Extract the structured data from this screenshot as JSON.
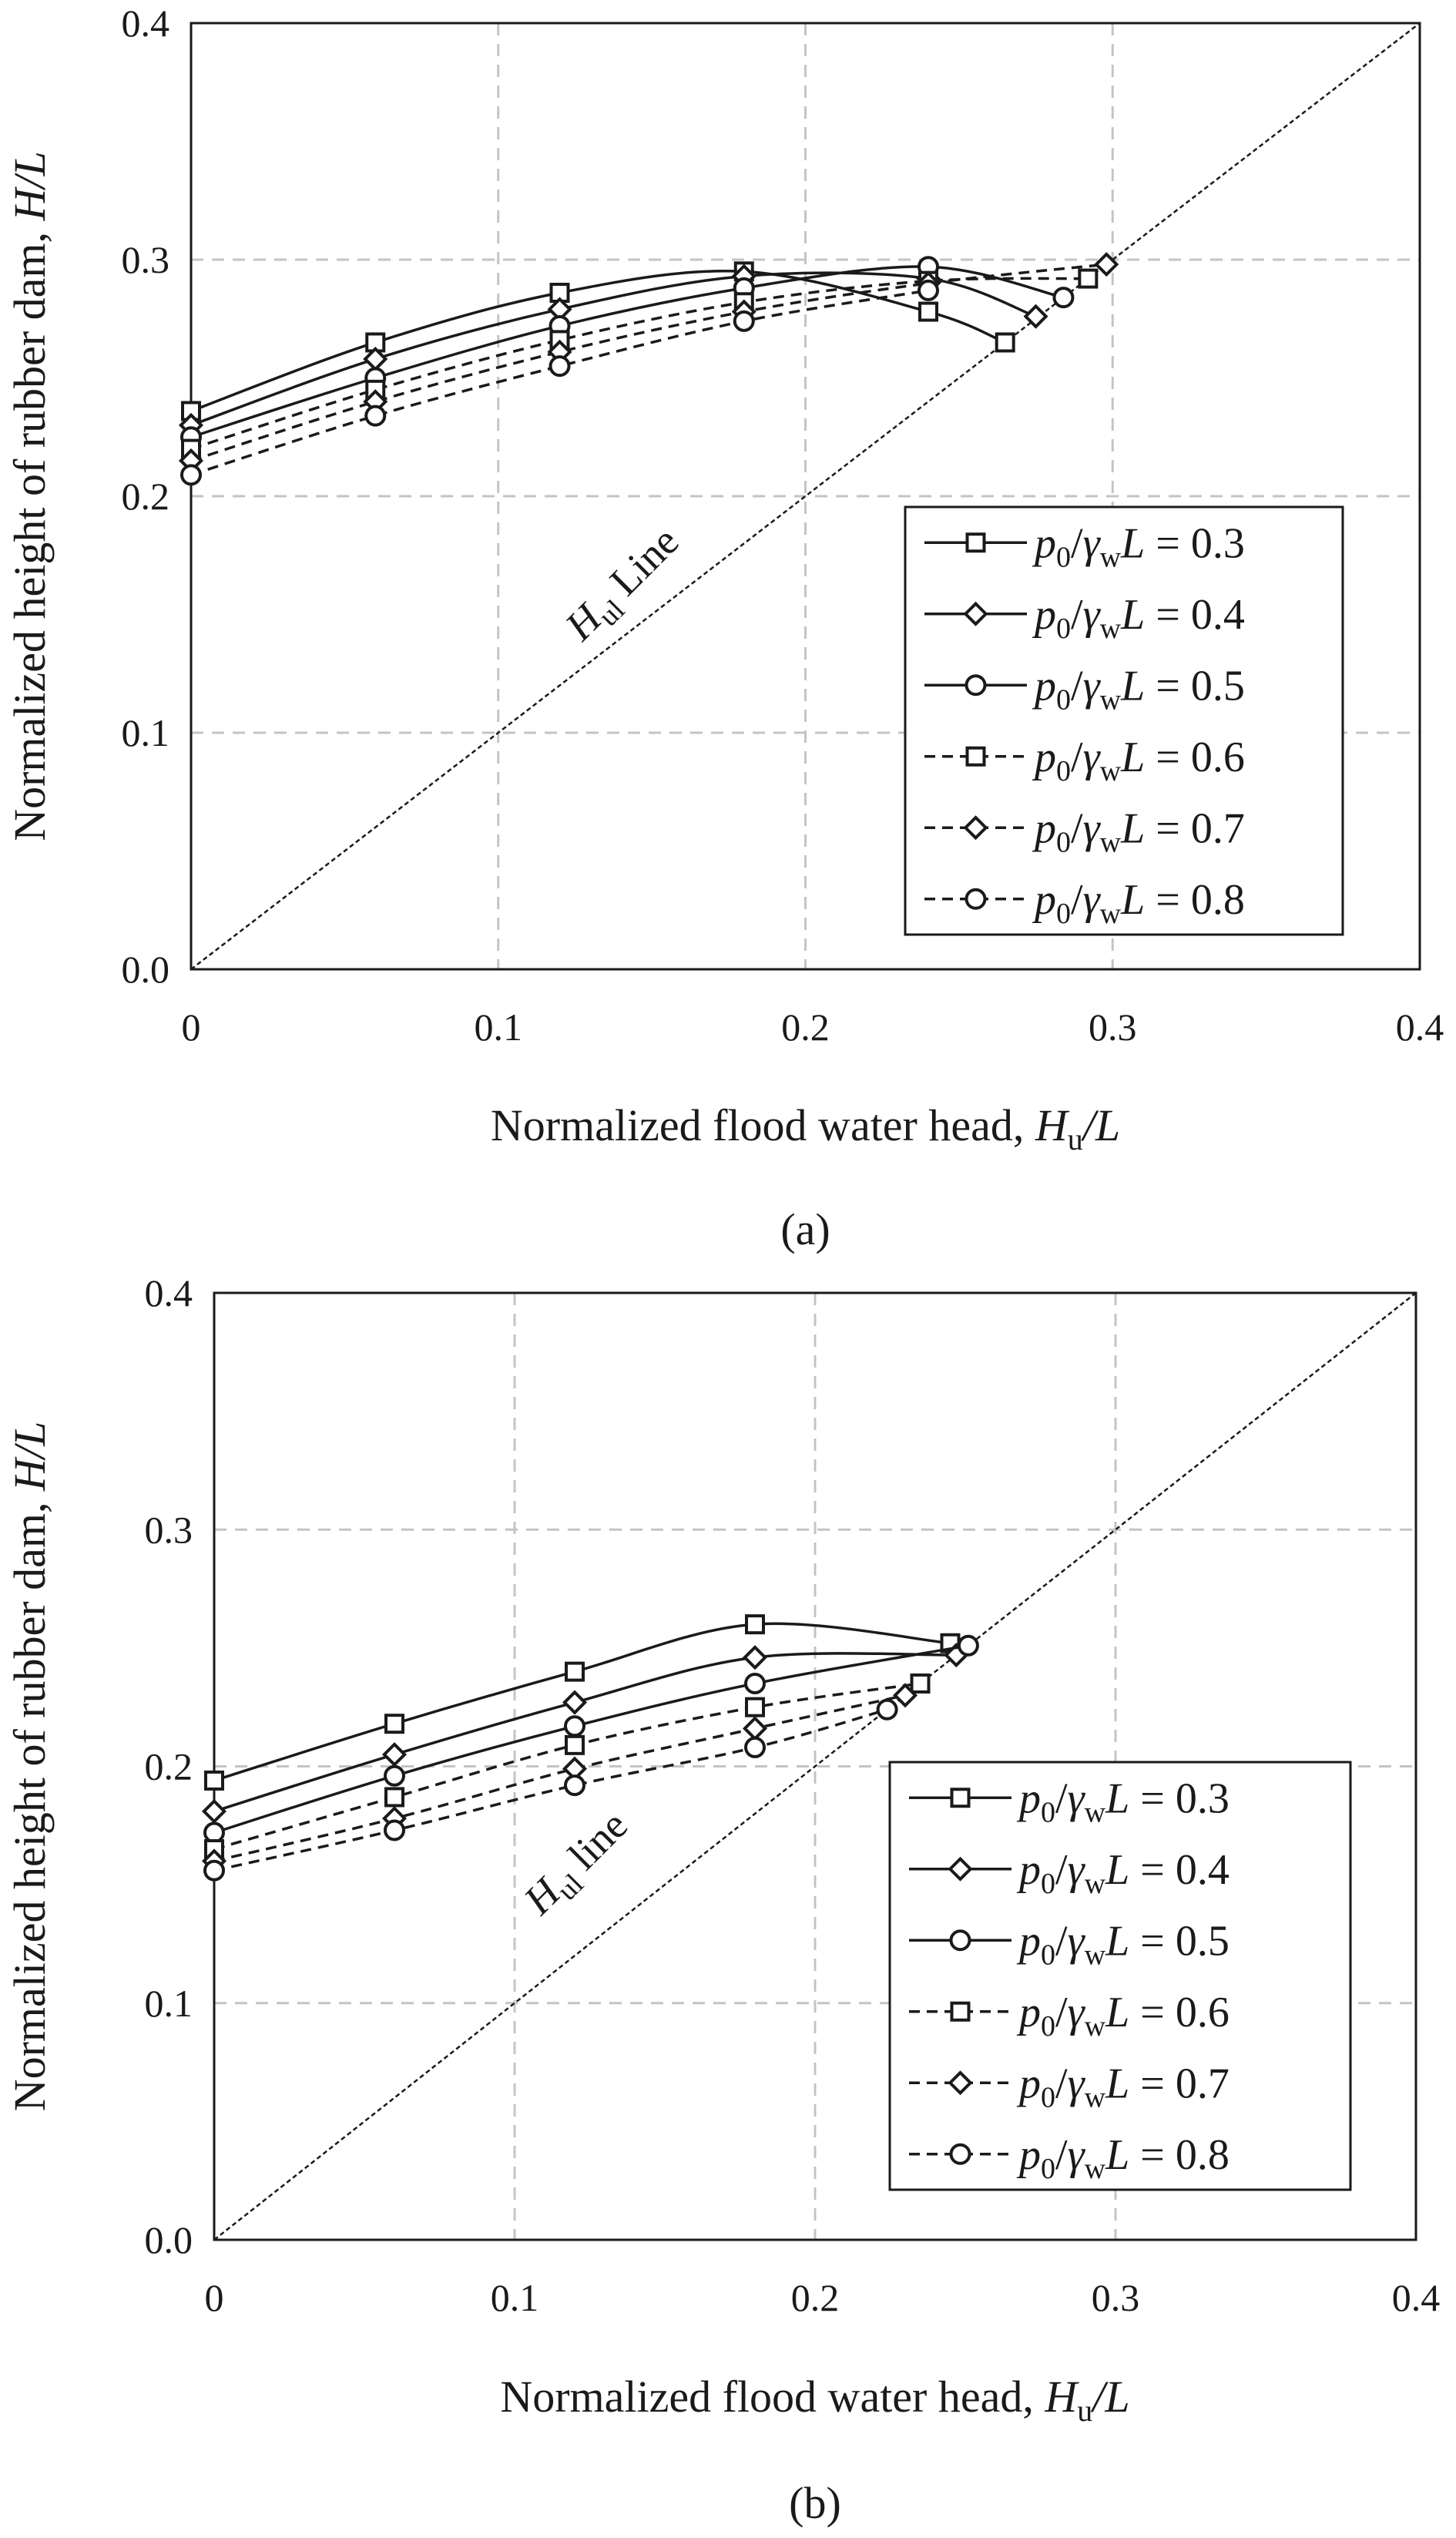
{
  "figure": {
    "panels": [
      {
        "caption": "(a)",
        "annotation": {
          "italic": "H",
          "sub": "ul",
          "rest": " Line"
        },
        "chart_data": {
          "type": "line",
          "xlabel": {
            "text": "Normalized flood water head, ",
            "italic": "H",
            "sub": "u",
            "suffix": "/L"
          },
          "ylabel": {
            "text": "Normalized height of rubber dam, ",
            "italic": "H/L"
          },
          "xlim": [
            0,
            0.4
          ],
          "ylim": [
            0,
            0.4
          ],
          "xticks": [
            "0",
            "0.1",
            "0.2",
            "0.3",
            "0.4"
          ],
          "yticks": [
            "0.0",
            "0.1",
            "0.2",
            "0.3",
            "0.4"
          ],
          "grid": true,
          "legend_position": "bottom-right",
          "reference_line": {
            "name": "Hul Line",
            "x": [
              0,
              0.4
            ],
            "y": [
              0,
              0.4
            ]
          },
          "series": [
            {
              "name": "p0/γwL = 0.3",
              "value": "0.3",
              "marker": "square",
              "dash": "solid",
              "points": [
                [
                  0,
                  0.236
                ],
                [
                  0.06,
                  0.265
                ],
                [
                  0.12,
                  0.286
                ],
                [
                  0.18,
                  0.295
                ],
                [
                  0.24,
                  0.278
                ],
                [
                  0.265,
                  0.265
                ]
              ]
            },
            {
              "name": "p0/γwL = 0.4",
              "value": "0.4",
              "marker": "diamond",
              "dash": "solid",
              "points": [
                [
                  0,
                  0.23
                ],
                [
                  0.06,
                  0.258
                ],
                [
                  0.12,
                  0.279
                ],
                [
                  0.18,
                  0.293
                ],
                [
                  0.24,
                  0.292
                ],
                [
                  0.275,
                  0.276
                ]
              ]
            },
            {
              "name": "p0/γwL = 0.5",
              "value": "0.5",
              "marker": "circle",
              "dash": "solid",
              "points": [
                [
                  0,
                  0.225
                ],
                [
                  0.06,
                  0.25
                ],
                [
                  0.12,
                  0.272
                ],
                [
                  0.18,
                  0.288
                ],
                [
                  0.24,
                  0.297
                ],
                [
                  0.284,
                  0.284
                ]
              ]
            },
            {
              "name": "p0/γwL = 0.6",
              "value": "0.6",
              "marker": "square",
              "dash": "dashed",
              "points": [
                [
                  0,
                  0.22
                ],
                [
                  0.06,
                  0.245
                ],
                [
                  0.12,
                  0.266
                ],
                [
                  0.18,
                  0.282
                ],
                [
                  0.24,
                  0.291
                ],
                [
                  0.292,
                  0.292
                ]
              ]
            },
            {
              "name": "p0/γwL = 0.7",
              "value": "0.7",
              "marker": "diamond",
              "dash": "dashed",
              "points": [
                [
                  0,
                  0.215
                ],
                [
                  0.06,
                  0.24
                ],
                [
                  0.12,
                  0.261
                ],
                [
                  0.18,
                  0.278
                ],
                [
                  0.24,
                  0.29
                ],
                [
                  0.298,
                  0.298
                ]
              ]
            },
            {
              "name": "p0/γwL = 0.8",
              "value": "0.8",
              "marker": "circle",
              "dash": "dashed",
              "points": [
                [
                  0,
                  0.209
                ],
                [
                  0.06,
                  0.234
                ],
                [
                  0.12,
                  0.255
                ],
                [
                  0.18,
                  0.274
                ],
                [
                  0.24,
                  0.287
                ]
              ]
            }
          ]
        }
      },
      {
        "caption": "(b)",
        "annotation": {
          "italic": "H",
          "sub": "ul",
          "rest": " line"
        },
        "chart_data": {
          "type": "line",
          "xlabel": {
            "text": "Normalized flood water head, ",
            "italic": "H",
            "sub": "u",
            "suffix": "/L"
          },
          "ylabel": {
            "text": "Normalized height of rubber dam, ",
            "italic": "H/L"
          },
          "xlim": [
            0,
            0.4
          ],
          "ylim": [
            0,
            0.4
          ],
          "xticks": [
            "0",
            "0.1",
            "0.2",
            "0.3",
            "0.4"
          ],
          "yticks": [
            "0.0",
            "0.1",
            "0.2",
            "0.3",
            "0.4"
          ],
          "grid": true,
          "legend_position": "bottom-right",
          "reference_line": {
            "name": "Hul line",
            "x": [
              0,
              0.4
            ],
            "y": [
              0,
              0.4
            ]
          },
          "series": [
            {
              "name": "p0/γwL = 0.3",
              "value": "0.3",
              "marker": "square",
              "dash": "solid",
              "points": [
                [
                  0,
                  0.194
                ],
                [
                  0.06,
                  0.218
                ],
                [
                  0.12,
                  0.24
                ],
                [
                  0.18,
                  0.26
                ],
                [
                  0.245,
                  0.252
                ]
              ]
            },
            {
              "name": "p0/γwL = 0.4",
              "value": "0.4",
              "marker": "diamond",
              "dash": "solid",
              "points": [
                [
                  0,
                  0.181
                ],
                [
                  0.06,
                  0.205
                ],
                [
                  0.12,
                  0.227
                ],
                [
                  0.18,
                  0.246
                ],
                [
                  0.247,
                  0.247
                ]
              ]
            },
            {
              "name": "p0/γwL = 0.5",
              "value": "0.5",
              "marker": "circle",
              "dash": "solid",
              "points": [
                [
                  0,
                  0.172
                ],
                [
                  0.06,
                  0.196
                ],
                [
                  0.12,
                  0.217
                ],
                [
                  0.18,
                  0.235
                ],
                [
                  0.251,
                  0.251
                ]
              ]
            },
            {
              "name": "p0/γwL = 0.6",
              "value": "0.6",
              "marker": "square",
              "dash": "dashed",
              "points": [
                [
                  0,
                  0.165
                ],
                [
                  0.06,
                  0.187
                ],
                [
                  0.12,
                  0.209
                ],
                [
                  0.18,
                  0.225
                ],
                [
                  0.235,
                  0.235
                ]
              ]
            },
            {
              "name": "p0/γwL = 0.7",
              "value": "0.7",
              "marker": "diamond",
              "dash": "dashed",
              "points": [
                [
                  0,
                  0.16
                ],
                [
                  0.06,
                  0.178
                ],
                [
                  0.12,
                  0.199
                ],
                [
                  0.18,
                  0.216
                ],
                [
                  0.23,
                  0.23
                ]
              ]
            },
            {
              "name": "p0/γwL = 0.8",
              "value": "0.8",
              "marker": "circle",
              "dash": "dashed",
              "points": [
                [
                  0,
                  0.156
                ],
                [
                  0.06,
                  0.173
                ],
                [
                  0.12,
                  0.192
                ],
                [
                  0.18,
                  0.208
                ],
                [
                  0.224,
                  0.224
                ]
              ]
            }
          ]
        }
      }
    ]
  }
}
